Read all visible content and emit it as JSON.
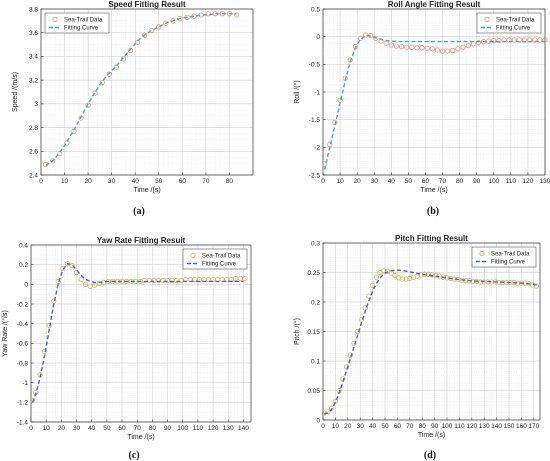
{
  "chart_data": [
    {
      "type": "scatter",
      "caption": "(a)",
      "title": "Speed Fitting Result",
      "xlabel": "Time /(s)",
      "ylabel": "Speed /(m/s)",
      "xlim": [
        0,
        90
      ],
      "ylim": [
        2.4,
        3.8
      ],
      "xticks": [
        0,
        10,
        20,
        30,
        40,
        50,
        60,
        70,
        80
      ],
      "yticks": [
        2.4,
        2.6,
        2.8,
        3.0,
        3.2,
        3.4,
        3.6,
        3.8
      ],
      "xtick_labels": [
        "0",
        "10",
        "20",
        "30",
        "40",
        "50",
        "60",
        "70",
        "80"
      ],
      "ytick_labels": [
        "2.4",
        "2.6",
        "2.8",
        "3",
        "3.2",
        "3.4",
        "3.6",
        "3.8"
      ],
      "grid": true,
      "legend_position": "top-left",
      "series": [
        {
          "name": "Sea-Trail Data",
          "kind": "markers",
          "color": "#f08a70",
          "x": [
            2,
            5,
            8,
            11,
            14,
            17,
            20,
            23,
            26,
            29,
            32,
            35,
            38,
            41,
            44,
            47,
            50,
            53,
            56,
            59,
            62,
            65,
            68,
            71,
            74,
            77,
            80,
            83
          ],
          "y": [
            2.49,
            2.52,
            2.58,
            2.67,
            2.77,
            2.88,
            2.99,
            3.09,
            3.18,
            3.25,
            3.31,
            3.38,
            3.45,
            3.52,
            3.58,
            3.62,
            3.65,
            3.68,
            3.7,
            3.72,
            3.73,
            3.74,
            3.75,
            3.76,
            3.76,
            3.76,
            3.76,
            3.75
          ]
        },
        {
          "name": "Fitting Curve",
          "kind": "dashed",
          "color": "#3ab0b0",
          "x": [
            2,
            5,
            8,
            11,
            14,
            17,
            20,
            23,
            26,
            29,
            32,
            35,
            38,
            41,
            44,
            47,
            50,
            53,
            56,
            59,
            62,
            65,
            68,
            71,
            74,
            77,
            80,
            83
          ],
          "y": [
            2.48,
            2.52,
            2.59,
            2.68,
            2.78,
            2.89,
            3.0,
            3.1,
            3.19,
            3.26,
            3.32,
            3.39,
            3.46,
            3.53,
            3.58,
            3.62,
            3.65,
            3.68,
            3.7,
            3.72,
            3.73,
            3.74,
            3.75,
            3.75,
            3.76,
            3.76,
            3.76,
            3.76
          ]
        }
      ]
    },
    {
      "type": "scatter",
      "caption": "(b)",
      "title": "Roll Angle Fitting Result",
      "xlabel": "Time /(s)",
      "ylabel": "Roll /(°)",
      "xlim": [
        0,
        130
      ],
      "ylim": [
        -2.5,
        0.5
      ],
      "xticks": [
        0,
        10,
        20,
        30,
        40,
        50,
        60,
        70,
        80,
        90,
        100,
        110,
        120,
        130
      ],
      "yticks": [
        -2.5,
        -2,
        -1.5,
        -1,
        -0.5,
        0,
        0.5
      ],
      "xtick_labels": [
        "0",
        "10",
        "20",
        "30",
        "40",
        "50",
        "60",
        "70",
        "80",
        "90",
        "100",
        "110",
        "120",
        "130"
      ],
      "ytick_labels": [
        "-2.5",
        "-2",
        "-1.5",
        "-1",
        "-0.5",
        "0",
        "0.5"
      ],
      "grid": true,
      "legend_position": "top-right",
      "series": [
        {
          "name": "Sea-Trail Data",
          "kind": "markers",
          "color": "#f08a70",
          "x": [
            1,
            4,
            7,
            10,
            13,
            16,
            19,
            22,
            25,
            28,
            31,
            34,
            37,
            40,
            43,
            46,
            49,
            52,
            55,
            58,
            61,
            64,
            67,
            70,
            73,
            76,
            79,
            82,
            85,
            88,
            91,
            94,
            97,
            100,
            103,
            106,
            109,
            112,
            115,
            118,
            121,
            124,
            127,
            130
          ],
          "y": [
            -2.3,
            -1.95,
            -1.55,
            -1.15,
            -0.75,
            -0.42,
            -0.18,
            -0.03,
            0.03,
            0.02,
            -0.03,
            -0.08,
            -0.12,
            -0.15,
            -0.17,
            -0.18,
            -0.19,
            -0.19,
            -0.2,
            -0.2,
            -0.21,
            -0.22,
            -0.24,
            -0.26,
            -0.26,
            -0.25,
            -0.22,
            -0.19,
            -0.16,
            -0.13,
            -0.11,
            -0.09,
            -0.08,
            -0.07,
            -0.07,
            -0.06,
            -0.06,
            -0.06,
            -0.06,
            -0.06,
            -0.06,
            -0.06,
            -0.06,
            -0.06
          ]
        },
        {
          "name": "Fitting Curve",
          "kind": "dashed",
          "color": "#3ab0b0",
          "x": [
            1,
            4,
            7,
            10,
            13,
            16,
            19,
            22,
            25,
            28,
            31,
            34,
            37,
            40,
            45,
            50,
            60,
            70,
            80,
            90,
            100,
            110,
            120,
            130
          ],
          "y": [
            -2.4,
            -2.0,
            -1.6,
            -1.2,
            -0.8,
            -0.45,
            -0.2,
            -0.04,
            0.02,
            0.01,
            -0.02,
            -0.05,
            -0.07,
            -0.08,
            -0.09,
            -0.09,
            -0.09,
            -0.09,
            -0.09,
            -0.09,
            -0.09,
            -0.09,
            -0.09,
            -0.09
          ]
        }
      ]
    },
    {
      "type": "scatter",
      "caption": "(c)",
      "title": "Yaw Rate Fitting Result",
      "xlabel": "Time /(s)",
      "ylabel": "Yaw Rate /(°/s)",
      "xlim": [
        0,
        145
      ],
      "ylim": [
        -1.4,
        0.4
      ],
      "xticks": [
        0,
        10,
        20,
        30,
        40,
        50,
        60,
        70,
        80,
        90,
        100,
        110,
        120,
        130,
        140
      ],
      "yticks": [
        -1.4,
        -1.2,
        -1,
        -0.8,
        -0.6,
        -0.4,
        -0.2,
        0,
        0.2,
        0.4
      ],
      "xtick_labels": [
        "0",
        "10",
        "20",
        "30",
        "40",
        "50",
        "60",
        "70",
        "80",
        "90",
        "100",
        "110",
        "120",
        "130",
        "140"
      ],
      "ytick_labels": [
        "-1.4",
        "-1.2",
        "-1",
        "-0.8",
        "-0.6",
        "-0.4",
        "-0.2",
        "0",
        "0.2",
        "0.4"
      ],
      "grid": true,
      "legend_position": "top-right",
      "series": [
        {
          "name": "Sea-Trail Data",
          "kind": "markers",
          "color": "#d6b24a",
          "x": [
            1,
            3,
            6,
            9,
            12,
            15,
            18,
            21,
            24,
            27,
            30,
            33,
            36,
            39,
            42,
            45,
            48,
            51,
            54,
            57,
            60,
            63,
            66,
            69,
            72,
            75,
            78,
            81,
            84,
            87,
            90,
            93,
            96,
            99,
            102,
            105,
            108,
            111,
            114,
            117,
            120,
            123,
            126,
            129,
            132,
            135,
            138,
            141
          ],
          "y": [
            -1.18,
            -1.1,
            -0.92,
            -0.68,
            -0.42,
            -0.17,
            0.03,
            0.16,
            0.21,
            0.19,
            0.12,
            0.05,
            0.0,
            -0.02,
            -0.01,
            0.01,
            0.02,
            0.03,
            0.03,
            0.03,
            0.03,
            0.03,
            0.03,
            0.03,
            0.03,
            0.04,
            0.04,
            0.04,
            0.04,
            0.04,
            0.04,
            0.04,
            0.04,
            0.04,
            0.05,
            0.05,
            0.05,
            0.05,
            0.05,
            0.05,
            0.05,
            0.05,
            0.05,
            0.05,
            0.05,
            0.06,
            0.06,
            0.06
          ]
        },
        {
          "name": "Fitting Curve",
          "kind": "dashed",
          "color": "#4a5fbf",
          "x": [
            1,
            3,
            6,
            9,
            12,
            15,
            18,
            21,
            24,
            27,
            30,
            33,
            36,
            39,
            42,
            45,
            50,
            60,
            70,
            80,
            90,
            100,
            110,
            120,
            130,
            140
          ],
          "y": [
            -1.2,
            -1.12,
            -0.95,
            -0.72,
            -0.46,
            -0.2,
            0.01,
            0.15,
            0.21,
            0.2,
            0.15,
            0.09,
            0.05,
            0.03,
            0.02,
            0.02,
            0.03,
            0.03,
            0.03,
            0.03,
            0.03,
            0.03,
            0.03,
            0.03,
            0.03,
            0.03
          ]
        }
      ]
    },
    {
      "type": "scatter",
      "caption": "(d)",
      "title": "Pitch Fitting Result",
      "xlabel": "Time /(s)",
      "ylabel": "Pitch /(°)",
      "xlim": [
        0,
        175
      ],
      "ylim": [
        0,
        0.3
      ],
      "xticks": [
        0,
        10,
        20,
        30,
        40,
        50,
        60,
        70,
        80,
        90,
        100,
        110,
        120,
        130,
        140,
        150,
        160,
        170
      ],
      "yticks": [
        0,
        0.05,
        0.1,
        0.15,
        0.2,
        0.25,
        0.3
      ],
      "xtick_labels": [
        "0",
        "10",
        "20",
        "30",
        "40",
        "50",
        "60",
        "70",
        "80",
        "90",
        "100",
        "110",
        "120",
        "130",
        "140",
        "150",
        "160",
        "170"
      ],
      "ytick_labels": [
        "0",
        "0.05",
        "0.1",
        "0.15",
        "0.2",
        "0.25",
        "0.3"
      ],
      "grid": true,
      "legend_position": "top-right",
      "series": [
        {
          "name": "Sea-Trail Data",
          "kind": "markers",
          "color": "#d6b24a",
          "x": [
            1,
            4,
            7,
            10,
            13,
            16,
            19,
            22,
            25,
            28,
            31,
            34,
            37,
            40,
            43,
            46,
            49,
            52,
            55,
            58,
            61,
            64,
            67,
            70,
            73,
            76,
            79,
            82,
            85,
            88,
            91,
            94,
            97,
            100,
            103,
            106,
            109,
            112,
            115,
            118,
            121,
            124,
            127,
            130,
            133,
            136,
            139,
            142,
            145,
            148,
            151,
            154,
            157,
            160,
            163,
            166,
            169,
            172
          ],
          "y": [
            0.012,
            0.014,
            0.02,
            0.032,
            0.05,
            0.07,
            0.09,
            0.11,
            0.13,
            0.15,
            0.17,
            0.19,
            0.21,
            0.228,
            0.242,
            0.25,
            0.253,
            0.252,
            0.249,
            0.245,
            0.241,
            0.239,
            0.239,
            0.24,
            0.242,
            0.244,
            0.246,
            0.247,
            0.247,
            0.246,
            0.245,
            0.244,
            0.242,
            0.241,
            0.24,
            0.239,
            0.238,
            0.237,
            0.236,
            0.236,
            0.235,
            0.235,
            0.234,
            0.234,
            0.234,
            0.234,
            0.234,
            0.233,
            0.233,
            0.233,
            0.233,
            0.233,
            0.232,
            0.232,
            0.232,
            0.231,
            0.229,
            0.227
          ]
        },
        {
          "name": "Fitting Curve",
          "kind": "dashed",
          "color": "#4a5fbf",
          "x": [
            1,
            4,
            7,
            10,
            13,
            16,
            19,
            22,
            25,
            28,
            31,
            34,
            37,
            40,
            43,
            46,
            50,
            55,
            60,
            65,
            70,
            75,
            80,
            90,
            100,
            110,
            120,
            130,
            140,
            150,
            160,
            170,
            173
          ],
          "y": [
            0.01,
            0.012,
            0.018,
            0.03,
            0.046,
            0.064,
            0.084,
            0.104,
            0.124,
            0.144,
            0.164,
            0.184,
            0.202,
            0.218,
            0.231,
            0.241,
            0.249,
            0.253,
            0.254,
            0.253,
            0.251,
            0.249,
            0.247,
            0.244,
            0.241,
            0.238,
            0.236,
            0.235,
            0.234,
            0.233,
            0.232,
            0.23,
            0.229
          ]
        }
      ]
    }
  ]
}
